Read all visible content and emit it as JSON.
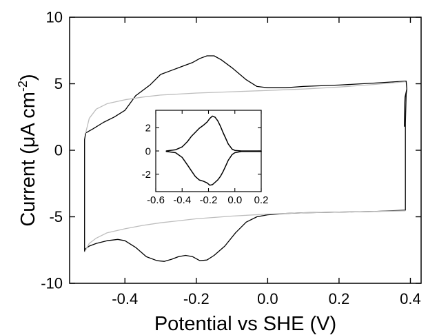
{
  "chart_data": [
    {
      "type": "line",
      "title": "",
      "xlabel": "Potential vs SHE (V)",
      "ylabel_main": "Current (",
      "ylabel_mu": "μ",
      "ylabel_unit": "A cm",
      "ylabel_exp": "-2",
      "ylabel_close": ")",
      "xlim": [
        -0.555,
        0.43
      ],
      "ylim": [
        -10,
        10
      ],
      "xticks": [
        -0.4,
        -0.2,
        0.0,
        0.2,
        0.4
      ],
      "xtick_labels": [
        "-0.4",
        "-0.2",
        "0.0",
        "0.2",
        "0.4"
      ],
      "yticks": [
        -10,
        -5,
        0,
        5,
        10
      ],
      "ytick_labels": [
        "-10",
        "-5",
        "0",
        "5",
        "10"
      ],
      "grid": false,
      "series": [
        {
          "color": "#000000",
          "x": [
            0.383,
            0.383,
            0.385,
            0.39,
            0.388,
            0.3,
            0.2,
            0.1,
            0.05,
            0.0,
            -0.03,
            -0.06,
            -0.1,
            -0.13,
            -0.15,
            -0.17,
            -0.19,
            -0.21,
            -0.24,
            -0.27,
            -0.3,
            -0.33,
            -0.37,
            -0.4,
            -0.43,
            -0.46,
            -0.49,
            -0.51,
            -0.513,
            -0.513,
            -0.51,
            -0.5,
            -0.48,
            -0.45,
            -0.42,
            -0.4,
            -0.37,
            -0.34,
            -0.31,
            -0.29,
            -0.27,
            -0.25,
            -0.23,
            -0.21,
            -0.19,
            -0.17,
            -0.15,
            -0.12,
            -0.09,
            -0.06,
            -0.03,
            0.0,
            0.05,
            0.1,
            0.2,
            0.3,
            0.386,
            0.386,
            0.388,
            0.39
          ],
          "y": [
            1.8,
            2.8,
            4.0,
            4.6,
            5.2,
            5.05,
            4.9,
            4.8,
            4.7,
            4.7,
            4.8,
            5.3,
            6.2,
            6.8,
            7.1,
            7.1,
            6.9,
            6.6,
            6.3,
            6.0,
            5.7,
            4.9,
            4.1,
            3.0,
            2.5,
            2.1,
            1.6,
            1.3,
            0.8,
            -7.6,
            -7.4,
            -7.2,
            -7.0,
            -6.8,
            -6.7,
            -6.8,
            -7.3,
            -8.0,
            -8.3,
            -8.35,
            -8.2,
            -8.0,
            -7.9,
            -8.0,
            -8.3,
            -8.25,
            -7.9,
            -7.2,
            -6.2,
            -5.4,
            -5.0,
            -4.85,
            -4.75,
            -4.7,
            -4.65,
            -4.6,
            -4.5,
            2.0,
            4.2,
            4.6
          ]
        },
        {
          "color": "#bdbdbd",
          "x": [
            -0.51,
            -0.5,
            -0.48,
            -0.45,
            -0.4,
            -0.35,
            -0.3,
            -0.2,
            -0.1,
            0.0,
            0.1,
            0.2,
            0.3,
            0.385
          ],
          "y": [
            1.3,
            2.4,
            3.1,
            3.5,
            3.8,
            4.0,
            4.15,
            4.3,
            4.4,
            4.5,
            4.6,
            4.75,
            4.95,
            5.15
          ]
        },
        {
          "color": "#bdbdbd",
          "x": [
            -0.512,
            -0.5,
            -0.48,
            -0.45,
            -0.4,
            -0.35,
            -0.3,
            -0.2,
            -0.1,
            0.0,
            0.1,
            0.2,
            0.3,
            0.385
          ],
          "y": [
            -7.6,
            -7.0,
            -6.6,
            -6.2,
            -5.9,
            -5.65,
            -5.45,
            -5.15,
            -4.95,
            -4.8,
            -4.7,
            -4.65,
            -4.6,
            -4.55
          ]
        }
      ]
    },
    {
      "type": "line",
      "title": "",
      "xlabel": "",
      "ylabel": "",
      "xlim": [
        -0.6,
        0.2
      ],
      "ylim": [
        -3.5,
        3.5
      ],
      "xticks": [
        -0.6,
        -0.4,
        -0.2,
        0.0,
        0.2
      ],
      "xtick_labels": [
        "-0.6",
        "-0.4",
        "-0.2",
        "0.0",
        "0.2"
      ],
      "yticks": [
        -2,
        0,
        2
      ],
      "ytick_labels": [
        "-2",
        "0",
        "2"
      ],
      "grid": false,
      "series": [
        {
          "color": "#000000",
          "x": [
            -0.52,
            -0.45,
            -0.4,
            -0.36,
            -0.33,
            -0.3,
            -0.27,
            -0.24,
            -0.21,
            -0.19,
            -0.17,
            -0.15,
            -0.13,
            -0.11,
            -0.09,
            -0.07,
            -0.05,
            -0.02,
            0.0,
            0.05,
            0.2,
            0.2,
            0.05,
            0.0,
            -0.02,
            -0.05,
            -0.07,
            -0.09,
            -0.11,
            -0.13,
            -0.15,
            -0.17,
            -0.19,
            -0.21,
            -0.24,
            -0.27,
            -0.3,
            -0.33,
            -0.36,
            -0.4,
            -0.45,
            -0.52
          ],
          "y": [
            0.0,
            0.1,
            0.35,
            0.8,
            1.25,
            1.6,
            1.95,
            2.2,
            2.5,
            2.8,
            3.0,
            2.9,
            2.6,
            2.15,
            1.6,
            1.1,
            0.6,
            0.15,
            0.05,
            0.0,
            0.0,
            -0.05,
            -0.05,
            -0.15,
            -0.3,
            -0.8,
            -1.3,
            -1.8,
            -2.2,
            -2.5,
            -2.7,
            -2.9,
            -2.95,
            -2.75,
            -2.6,
            -2.5,
            -2.2,
            -1.7,
            -1.2,
            -0.55,
            -0.15,
            -0.05
          ]
        }
      ]
    }
  ]
}
